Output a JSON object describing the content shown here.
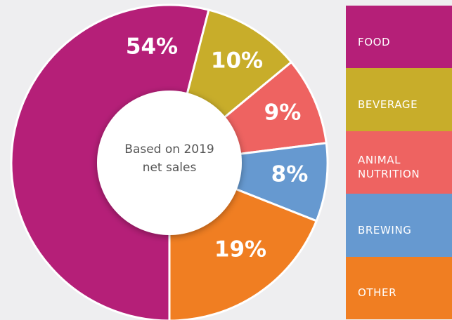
{
  "chart_data": {
    "type": "donut",
    "categories": [
      "FOOD",
      "BEVERAGE",
      "ANIMAL NUTRITION",
      "BREWING",
      "OTHER"
    ],
    "values": [
      54,
      10,
      9,
      8,
      19
    ],
    "value_labels": [
      "54%",
      "10%",
      "9%",
      "8%",
      "19%"
    ],
    "colors": [
      "#b51f78",
      "#c8ad2a",
      "#ee6361",
      "#6699d0",
      "#f07e22"
    ],
    "center_label": "Based on 2019 net sales"
  }
}
